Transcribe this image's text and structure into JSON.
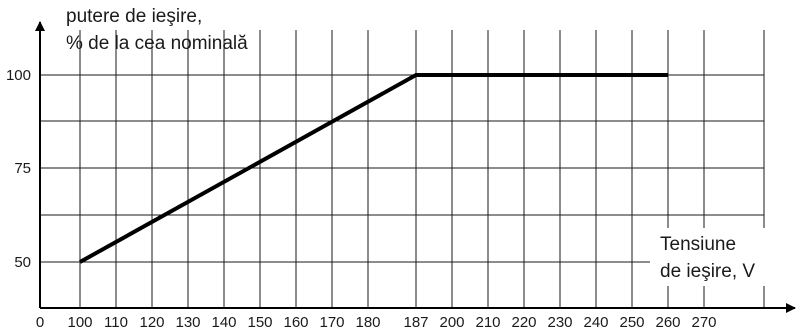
{
  "chart_data": {
    "type": "line",
    "title": "",
    "ylabel_lines": [
      "putere de ieşire,",
      "% de la cea nominală"
    ],
    "xlabel_lines": [
      "Tensiune",
      "de ieşire, V"
    ],
    "x_ticks": [
      "0",
      "100",
      "110",
      "120",
      "130",
      "140",
      "150",
      "160",
      "170",
      "180",
      "187",
      "200",
      "210",
      "220",
      "230",
      "240",
      "250",
      "260",
      "270"
    ],
    "y_ticks": [
      "50",
      "75",
      "100"
    ],
    "grid": true,
    "series": [
      {
        "x": [
          100,
          187,
          260
        ],
        "y": [
          50,
          100,
          100
        ]
      }
    ]
  },
  "colors": {
    "line": "#000000",
    "grid": "#1a1a1a",
    "text": "#1a1a1a"
  }
}
